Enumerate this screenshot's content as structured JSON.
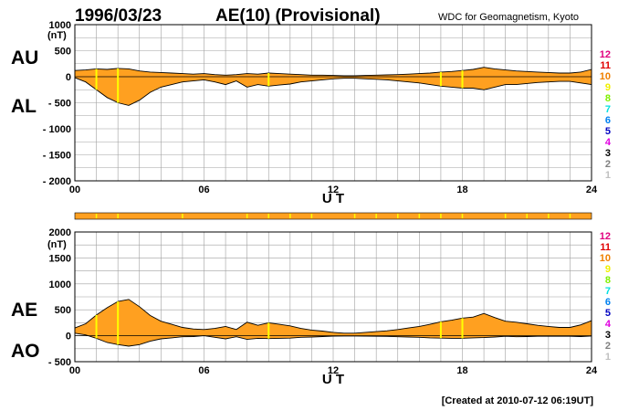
{
  "header": {
    "date": "1996/03/23",
    "index_title": "AE(10) (Provisional)",
    "source": "WDC for Geomagnetism, Kyoto"
  },
  "footer": {
    "created": "[Created at 2010-07-12 06:19UT]"
  },
  "station_legend": {
    "items": [
      {
        "label": "12",
        "color": "#e0007f"
      },
      {
        "label": "11",
        "color": "#e00000"
      },
      {
        "label": "10",
        "color": "#f08000"
      },
      {
        "label": "9",
        "color": "#f0f000"
      },
      {
        "label": "8",
        "color": "#80f000"
      },
      {
        "label": "7",
        "color": "#00e0e0"
      },
      {
        "label": "6",
        "color": "#0080f0"
      },
      {
        "label": "5",
        "color": "#0000c0"
      },
      {
        "label": "4",
        "color": "#e000e0"
      },
      {
        "label": "3",
        "color": "#000000"
      },
      {
        "label": "2",
        "color": "#808080"
      },
      {
        "label": "1",
        "color": "#c0c0c0"
      }
    ]
  },
  "colors": {
    "fill": "#ffa020",
    "station_marker": "#ffff00",
    "grid": "#a0a0a0",
    "bar": "#ffa020"
  },
  "chart_data": [
    {
      "type": "area",
      "panel": "AU/AL",
      "labels": [
        "AU",
        "AL"
      ],
      "unit": "(nT)",
      "xlabel": "U T",
      "xticks": [
        0,
        6,
        12,
        18,
        24
      ],
      "xtick_labels": [
        "00",
        "06",
        "12",
        "18",
        "24"
      ],
      "xlim": [
        0,
        24
      ],
      "ylim": [
        -2000,
        1000
      ],
      "yticks": [
        1000,
        500,
        0,
        -500,
        -1000,
        -1500,
        -2000
      ],
      "ytick_labels": [
        "1000",
        "500",
        "0",
        "- 500",
        "- 1000",
        "- 1500",
        "- 2000"
      ],
      "grid": true,
      "station_marker_hours": [
        1,
        2,
        9,
        17,
        18
      ],
      "x": [
        0,
        0.5,
        1,
        1.5,
        2,
        2.5,
        3,
        3.5,
        4,
        4.5,
        5,
        5.5,
        6,
        6.5,
        7,
        7.5,
        8,
        8.5,
        9,
        9.5,
        10,
        10.5,
        11,
        11.5,
        12,
        12.5,
        13,
        13.5,
        14,
        14.5,
        15,
        15.5,
        16,
        16.5,
        17,
        17.5,
        18,
        18.5,
        19,
        19.5,
        20,
        20.5,
        21,
        21.5,
        22,
        22.5,
        23,
        23.5,
        24
      ],
      "series": [
        {
          "name": "AU",
          "values": [
            120,
            130,
            150,
            140,
            160,
            150,
            110,
            90,
            80,
            70,
            60,
            50,
            60,
            40,
            30,
            40,
            60,
            50,
            70,
            60,
            50,
            40,
            30,
            30,
            25,
            20,
            20,
            25,
            30,
            35,
            40,
            50,
            60,
            70,
            90,
            100,
            120,
            140,
            180,
            150,
            130,
            110,
            100,
            90,
            80,
            70,
            70,
            90,
            140
          ]
        },
        {
          "name": "AL",
          "values": [
            -20,
            -100,
            -250,
            -400,
            -500,
            -550,
            -450,
            -300,
            -200,
            -150,
            -100,
            -80,
            -60,
            -100,
            -150,
            -80,
            -200,
            -150,
            -180,
            -160,
            -140,
            -100,
            -80,
            -60,
            -40,
            -30,
            -30,
            -40,
            -50,
            -60,
            -80,
            -100,
            -120,
            -150,
            -180,
            -200,
            -220,
            -220,
            -250,
            -200,
            -150,
            -150,
            -130,
            -110,
            -100,
            -90,
            -90,
            -120,
            -150
          ]
        }
      ]
    },
    {
      "type": "area",
      "panel": "AE/AO",
      "labels": [
        "AE",
        "AO"
      ],
      "unit": "(nT)",
      "xlabel": "U T",
      "xticks": [
        0,
        6,
        12,
        18,
        24
      ],
      "xtick_labels": [
        "00",
        "06",
        "12",
        "18",
        "24"
      ],
      "xlim": [
        0,
        24
      ],
      "ylim": [
        -500,
        2000
      ],
      "yticks": [
        2000,
        1500,
        1000,
        500,
        0,
        -500
      ],
      "ytick_labels": [
        "2000",
        "1500",
        "1000",
        "500",
        "0",
        "- 500"
      ],
      "grid": true,
      "station_marker_hours": [
        1,
        2,
        9,
        17,
        18
      ],
      "x": [
        0,
        0.5,
        1,
        1.5,
        2,
        2.5,
        3,
        3.5,
        4,
        4.5,
        5,
        5.5,
        6,
        6.5,
        7,
        7.5,
        8,
        8.5,
        9,
        9.5,
        10,
        10.5,
        11,
        11.5,
        12,
        12.5,
        13,
        13.5,
        14,
        14.5,
        15,
        15.5,
        16,
        16.5,
        17,
        17.5,
        18,
        18.5,
        19,
        19.5,
        20,
        20.5,
        21,
        21.5,
        22,
        22.5,
        23,
        23.5,
        24
      ],
      "series": [
        {
          "name": "AE",
          "values": [
            150,
            230,
            400,
            540,
            660,
            700,
            560,
            390,
            280,
            220,
            160,
            130,
            120,
            140,
            180,
            120,
            260,
            200,
            250,
            220,
            190,
            140,
            110,
            90,
            65,
            50,
            50,
            65,
            80,
            95,
            120,
            150,
            180,
            220,
            270,
            300,
            340,
            360,
            430,
            350,
            280,
            260,
            230,
            200,
            180,
            160,
            160,
            210,
            290
          ]
        },
        {
          "name": "AO",
          "values": [
            50,
            15,
            -50,
            -130,
            -170,
            -200,
            -170,
            -105,
            -60,
            -40,
            -20,
            -15,
            0,
            -30,
            -60,
            -20,
            -70,
            -50,
            -55,
            -50,
            -45,
            -30,
            -25,
            -15,
            -8,
            -5,
            -5,
            -8,
            -10,
            -12,
            -20,
            -25,
            -30,
            -40,
            -45,
            -50,
            -50,
            -40,
            -35,
            -25,
            -10,
            -20,
            -15,
            -10,
            -10,
            -10,
            -10,
            -15,
            -5
          ]
        }
      ]
    }
  ]
}
